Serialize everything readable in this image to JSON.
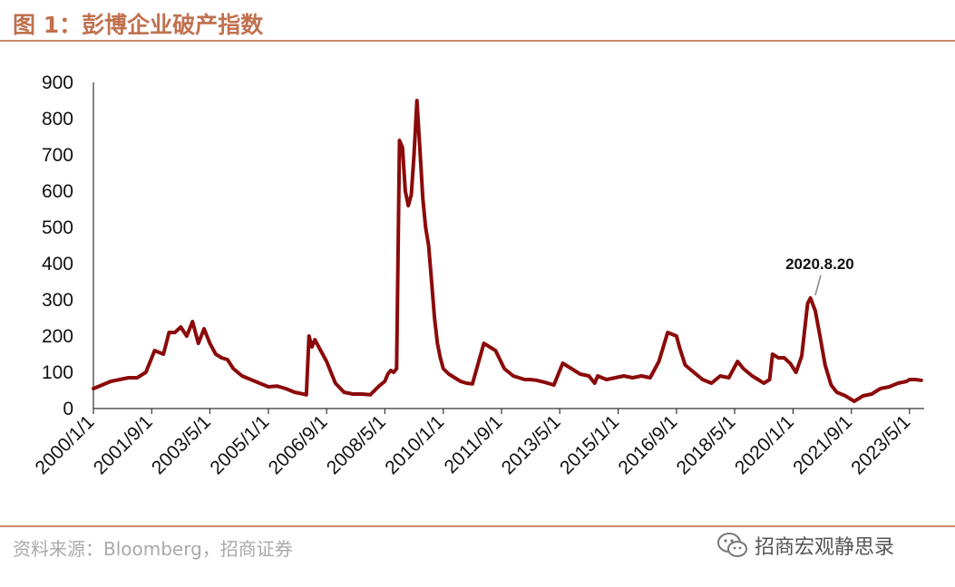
{
  "header": {
    "title": "图 1：彭博企业破产指数"
  },
  "footer": {
    "source": "资料来源：Bloomberg，招商证券",
    "watermark": "招商宏观静思录",
    "watermark_icon": "wechat-icon"
  },
  "colors": {
    "title": "#c0714f",
    "rule": "#c98a6a",
    "line": "#8b0a0a",
    "axis": "#333333",
    "source": "#a9a9a9"
  },
  "chart_data": {
    "type": "line",
    "title": "",
    "xlabel": "",
    "ylabel": "",
    "ylim": [
      0,
      900
    ],
    "yticks": [
      0,
      100,
      200,
      300,
      400,
      500,
      600,
      700,
      800,
      900
    ],
    "xtick_labels": [
      "2000/1/1",
      "2001/9/1",
      "2003/5/1",
      "2005/1/1",
      "2006/9/1",
      "2008/5/1",
      "2010/1/1",
      "2011/9/1",
      "2013/5/1",
      "2015/1/1",
      "2016/9/1",
      "2018/5/1",
      "2020/1/1",
      "2021/9/1",
      "2023/5/1"
    ],
    "grid": false,
    "legend": "none",
    "annotation": {
      "text": "2020.8.20",
      "x": "2020/8/20",
      "y": 305
    },
    "series": [
      {
        "x": [
          "2000/1/1",
          "2000/4/1",
          "2000/7/1",
          "2000/10/1",
          "2001/1/1",
          "2001/4/1",
          "2001/7/1",
          "2001/10/1",
          "2002/1/1",
          "2002/3/1",
          "2002/5/1",
          "2002/7/1",
          "2002/9/1",
          "2002/11/1",
          "2003/1/1",
          "2003/3/1",
          "2003/5/1",
          "2003/7/1",
          "2003/9/1",
          "2003/11/1",
          "2004/1/1",
          "2004/4/1",
          "2004/7/1",
          "2004/10/1",
          "2005/1/1",
          "2005/4/1",
          "2005/7/1",
          "2005/10/1",
          "2006/1/1",
          "2006/2/1",
          "2006/3/1",
          "2006/4/1",
          "2006/5/1",
          "2006/7/1",
          "2006/9/1",
          "2006/12/1",
          "2007/3/1",
          "2007/6/1",
          "2007/9/1",
          "2007/12/1",
          "2008/3/1",
          "2008/5/1",
          "2008/6/1",
          "2008/7/1",
          "2008/8/1",
          "2008/9/1",
          "2008/10/1",
          "2008/11/1",
          "2008/12/1",
          "2009/1/1",
          "2009/2/1",
          "2009/3/1",
          "2009/4/1",
          "2009/5/1",
          "2009/6/1",
          "2009/7/1",
          "2009/8/1",
          "2009/9/1",
          "2009/10/1",
          "2009/11/1",
          "2009/12/1",
          "2010/1/1",
          "2010/3/1",
          "2010/5/1",
          "2010/7/1",
          "2010/9/1",
          "2010/11/1",
          "2011/3/1",
          "2011/7/1",
          "2011/10/1",
          "2012/1/1",
          "2012/3/1",
          "2012/5/1",
          "2012/7/1",
          "2012/9/1",
          "2012/12/1",
          "2013/3/1",
          "2013/6/1",
          "2013/9/1",
          "2013/12/1",
          "2014/3/1",
          "2014/5/1",
          "2014/6/1",
          "2014/9/1",
          "2014/12/1",
          "2015/3/1",
          "2015/6/1",
          "2015/9/1",
          "2015/12/1",
          "2016/3/1",
          "2016/6/1",
          "2016/9/1",
          "2016/10/1",
          "2016/12/1",
          "2017/3/1",
          "2017/6/1",
          "2017/9/1",
          "2017/12/1",
          "2018/3/1",
          "2018/6/1",
          "2018/8/1",
          "2018/11/1",
          "2019/1/1",
          "2019/3/1",
          "2019/5/1",
          "2019/6/1",
          "2019/8/1",
          "2019/10/1",
          "2019/12/1",
          "2020/2/1",
          "2020/4/1",
          "2020/6/1",
          "2020/7/1",
          "2020/8/20",
          "2020/10/1",
          "2020/12/1",
          "2021/2/1",
          "2021/4/1",
          "2021/7/1",
          "2021/10/1",
          "2022/1/1",
          "2022/4/1",
          "2022/7/1",
          "2022/10/1",
          "2023/1/1",
          "2023/4/1",
          "2023/5/1",
          "2023/7/1",
          "2023/9/1"
        ],
        "values": [
          55,
          65,
          75,
          80,
          85,
          85,
          100,
          160,
          150,
          210,
          210,
          225,
          200,
          240,
          180,
          220,
          180,
          150,
          140,
          135,
          110,
          90,
          80,
          70,
          60,
          62,
          55,
          45,
          40,
          38,
          200,
          170,
          190,
          160,
          130,
          70,
          45,
          40,
          40,
          38,
          62,
          75,
          95,
          105,
          100,
          110,
          740,
          720,
          600,
          560,
          590,
          700,
          850,
          720,
          580,
          500,
          450,
          350,
          250,
          180,
          140,
          110,
          95,
          85,
          75,
          70,
          68,
          180,
          160,
          110,
          90,
          85,
          80,
          80,
          78,
          72,
          65,
          125,
          110,
          95,
          90,
          70,
          90,
          80,
          85,
          90,
          85,
          90,
          85,
          130,
          210,
          200,
          170,
          120,
          100,
          80,
          70,
          90,
          85,
          130,
          110,
          90,
          80,
          70,
          80,
          150,
          140,
          140,
          125,
          100,
          145,
          290,
          305,
          270,
          210,
          120,
          65,
          45,
          35,
          20,
          35,
          40,
          55,
          60,
          70,
          75,
          80,
          80,
          78
        ]
      }
    ]
  }
}
